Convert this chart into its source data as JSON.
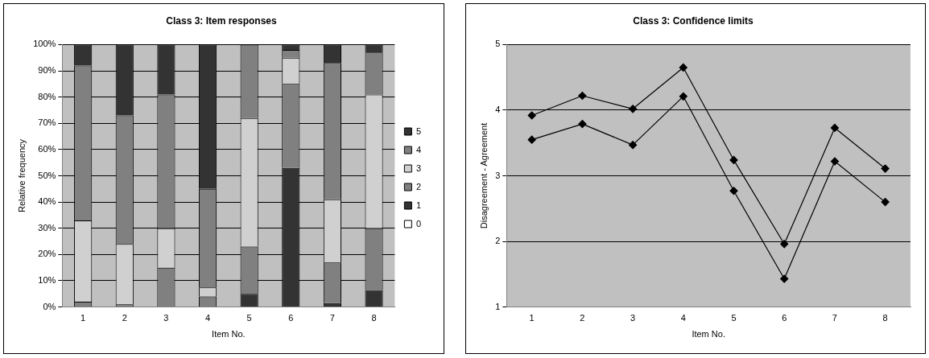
{
  "chart_data": [
    {
      "type": "bar",
      "title": "Class 3: Item responses",
      "xlabel": "Item No.",
      "ylabel": "Relative frequency",
      "categories": [
        "1",
        "2",
        "3",
        "4",
        "5",
        "6",
        "7",
        "8"
      ],
      "stacked": true,
      "series": [
        {
          "name": "0",
          "color": "#ffffff",
          "values": [
            0,
            0,
            0,
            0,
            0,
            0,
            0,
            0
          ]
        },
        {
          "name": "1",
          "color": "#333333",
          "values": [
            0,
            0,
            0,
            0,
            5,
            53,
            1.5,
            6.5
          ]
        },
        {
          "name": "2",
          "color": "#808080",
          "values": [
            2,
            1,
            15,
            4,
            18,
            32,
            15.5,
            23.5
          ]
        },
        {
          "name": "3",
          "color": "#d0d0d0",
          "values": [
            31,
            23,
            15,
            3.5,
            49,
            10,
            24,
            51
          ]
        },
        {
          "name": "4",
          "color": "#808080",
          "values": [
            59,
            49,
            51,
            37.5,
            28,
            3,
            52,
            16
          ]
        },
        {
          "name": "5",
          "color": "#333333",
          "values": [
            8,
            27,
            19,
            55,
            0,
            2,
            7,
            3
          ]
        }
      ],
      "ylim": [
        0,
        100
      ],
      "yticks": [
        {
          "value": 0,
          "label": "0%"
        },
        {
          "value": 10,
          "label": "10%"
        },
        {
          "value": 20,
          "label": "20%"
        },
        {
          "value": 30,
          "label": "30%"
        },
        {
          "value": 40,
          "label": "40%"
        },
        {
          "value": 50,
          "label": "50%"
        },
        {
          "value": 60,
          "label": "60%"
        },
        {
          "value": 70,
          "label": "70%"
        },
        {
          "value": 80,
          "label": "80%"
        },
        {
          "value": 90,
          "label": "90%"
        },
        {
          "value": 100,
          "label": "100%"
        }
      ],
      "grid": "y",
      "legend": "right"
    },
    {
      "type": "line",
      "title": "Class 3: Confidence limits",
      "xlabel": "Item No.",
      "ylabel": "Disagreement - Agreement",
      "categories": [
        "1",
        "2",
        "3",
        "4",
        "5",
        "6",
        "7",
        "8"
      ],
      "series": [
        {
          "color": "#000000",
          "values": [
            3.92,
            4.22,
            4.02,
            4.65,
            3.24,
            1.96,
            3.73,
            3.11
          ]
        },
        {
          "color": "#000000",
          "values": [
            3.55,
            3.79,
            3.47,
            4.21,
            2.77,
            1.43,
            3.22,
            2.6
          ]
        }
      ],
      "ylim": [
        1,
        5
      ],
      "yticks": [
        1,
        2,
        3,
        4,
        5
      ],
      "grid": "y",
      "marker": "diamond",
      "line_style": "solid",
      "legend": false
    }
  ]
}
